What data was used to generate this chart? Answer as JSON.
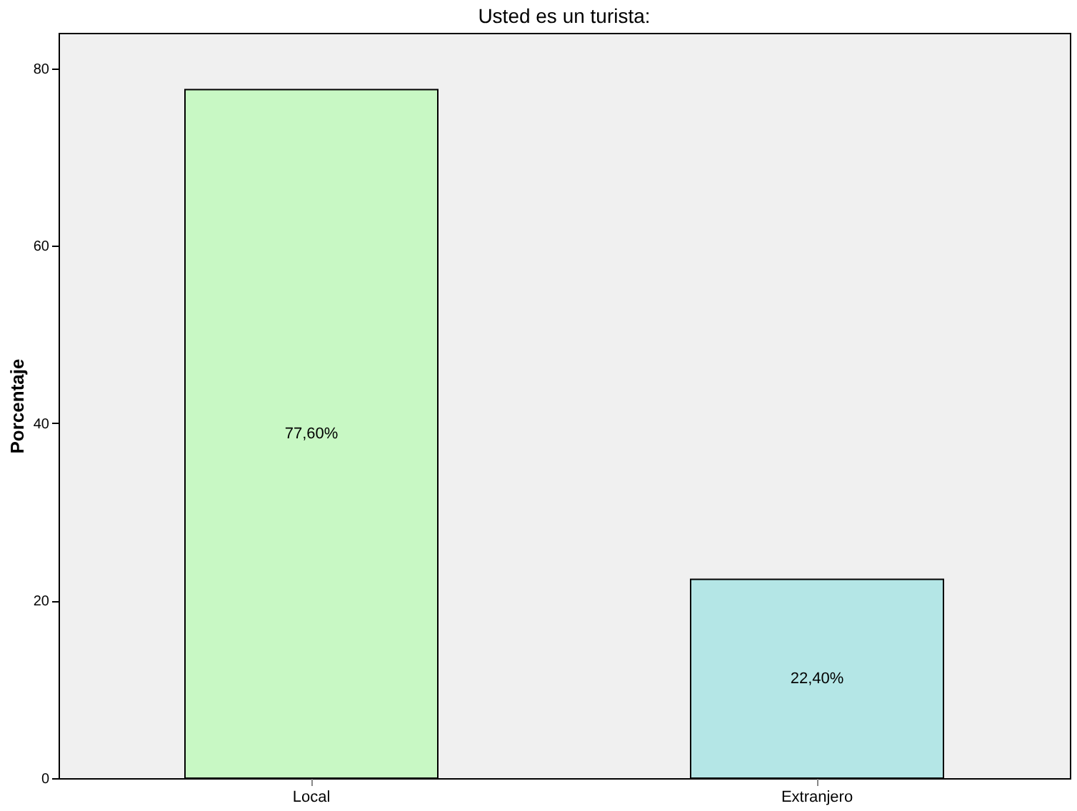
{
  "chart_data": {
    "type": "bar",
    "title": "Usted es un turista:",
    "ylabel": "Porcentaje",
    "categories": [
      "Local",
      "Extranjero"
    ],
    "values": [
      77.6,
      22.4
    ],
    "colors": [
      "#c8f8c4",
      "#b4e6e6"
    ],
    "value_labels": [
      "77,60%",
      "22,40%"
    ],
    "ylim": [
      0,
      84
    ],
    "yticks": [
      0,
      20,
      40,
      60,
      80
    ],
    "grid": false
  }
}
